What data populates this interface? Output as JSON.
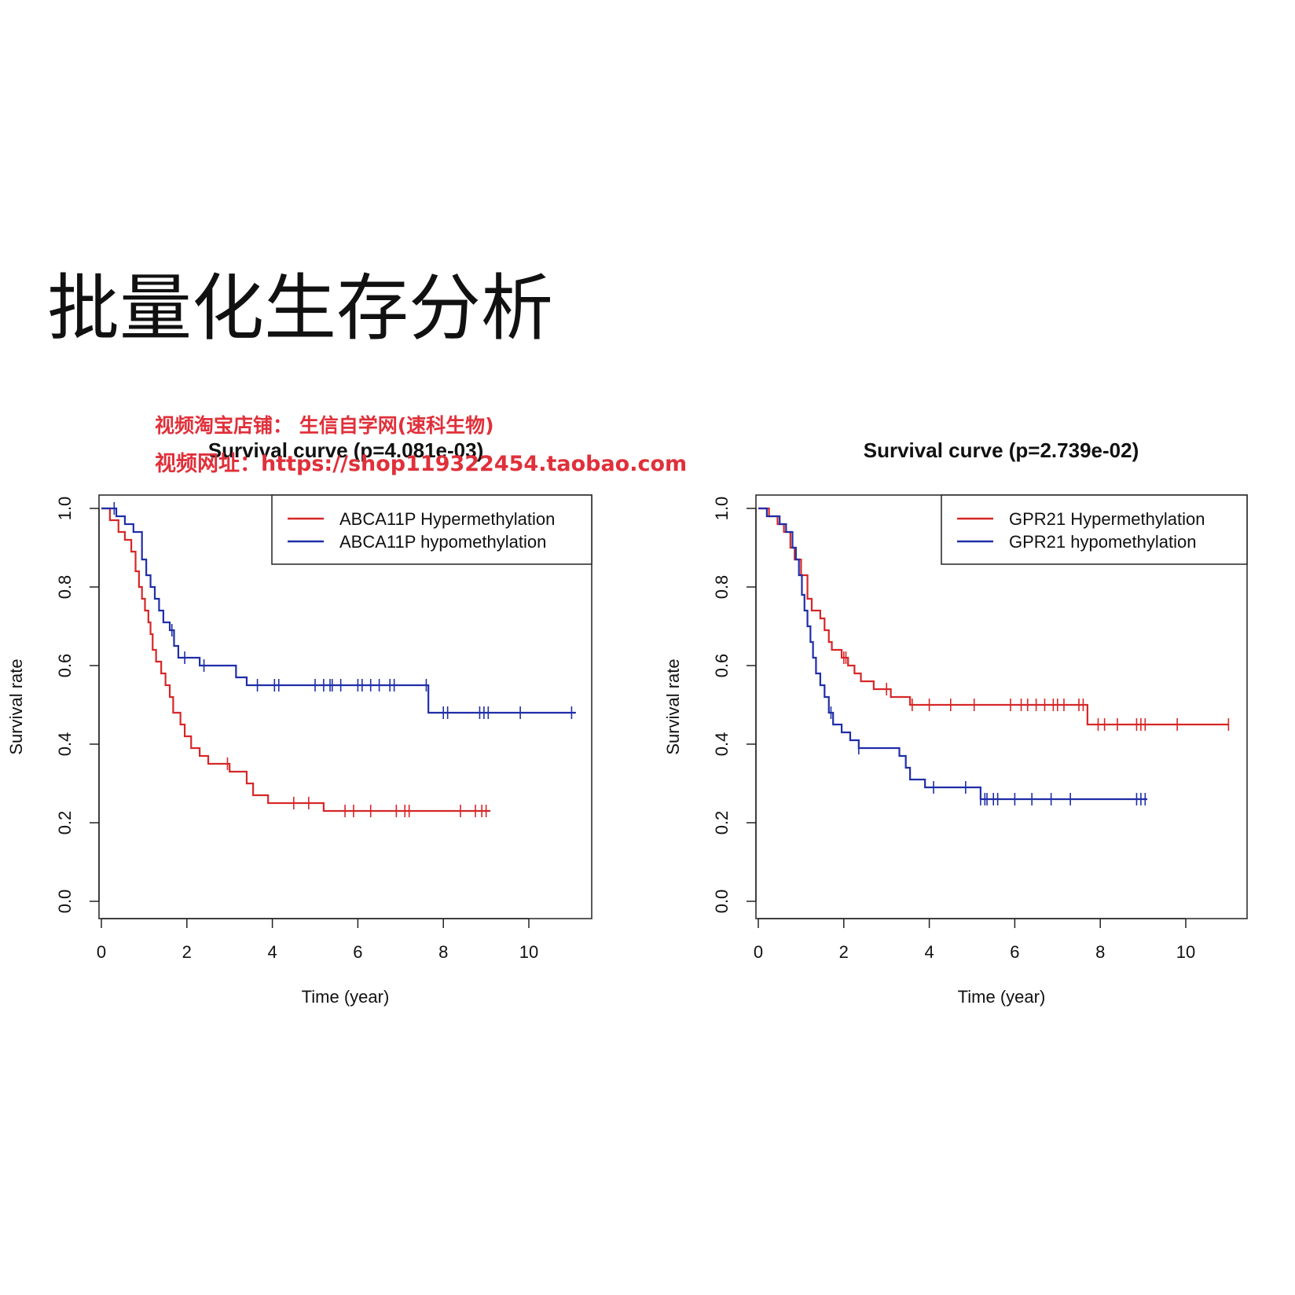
{
  "page": {
    "title": "批量化生存分析"
  },
  "watermark": {
    "line1": "视频淘宝店铺： 生信自学网(速科生物)",
    "line2": "视频网址：https://shop119322454.taobao.com",
    "color": "#e0303a"
  },
  "chart_data": [
    {
      "type": "line",
      "title": "Survival curve (p=4.081e-03)",
      "xlabel": "Time (year)",
      "ylabel": "Survival rate",
      "xlim": [
        0,
        11.5
      ],
      "ylim": [
        0,
        1.0
      ],
      "xticks": [
        "0",
        "2",
        "4",
        "6",
        "8",
        "10"
      ],
      "yticks": [
        "0.0",
        "0.2",
        "0.4",
        "0.6",
        "0.8",
        "1.0"
      ],
      "grid": false,
      "legend_position": "top-right",
      "series": [
        {
          "name": "ABCA11P Hypermethylation",
          "color": "#d62728",
          "steps": [
            [
              0,
              1.0
            ],
            [
              0.2,
              0.97
            ],
            [
              0.4,
              0.94
            ],
            [
              0.55,
              0.92
            ],
            [
              0.7,
              0.89
            ],
            [
              0.8,
              0.84
            ],
            [
              0.88,
              0.8
            ],
            [
              0.95,
              0.77
            ],
            [
              1.02,
              0.74
            ],
            [
              1.1,
              0.71
            ],
            [
              1.15,
              0.68
            ],
            [
              1.2,
              0.64
            ],
            [
              1.28,
              0.61
            ],
            [
              1.4,
              0.58
            ],
            [
              1.5,
              0.55
            ],
            [
              1.6,
              0.52
            ],
            [
              1.68,
              0.48
            ],
            [
              1.85,
              0.45
            ],
            [
              1.95,
              0.42
            ],
            [
              2.1,
              0.39
            ],
            [
              2.3,
              0.37
            ],
            [
              2.5,
              0.35
            ],
            [
              3.0,
              0.33
            ],
            [
              3.4,
              0.3
            ],
            [
              3.55,
              0.27
            ],
            [
              3.9,
              0.25
            ],
            [
              5.2,
              0.23
            ],
            [
              9.1,
              0.23
            ]
          ],
          "censored": [
            2.95,
            4.5,
            4.85,
            5.7,
            5.9,
            6.3,
            6.9,
            7.1,
            7.2,
            8.4,
            8.75,
            8.9,
            9.0
          ]
        },
        {
          "name": "ABCA11P hypomethylation",
          "color": "#1f2ea8",
          "steps": [
            [
              0,
              1.0
            ],
            [
              0.35,
              0.98
            ],
            [
              0.55,
              0.96
            ],
            [
              0.75,
              0.94
            ],
            [
              0.95,
              0.87
            ],
            [
              1.05,
              0.83
            ],
            [
              1.15,
              0.8
            ],
            [
              1.25,
              0.77
            ],
            [
              1.35,
              0.74
            ],
            [
              1.45,
              0.71
            ],
            [
              1.6,
              0.69
            ],
            [
              1.7,
              0.65
            ],
            [
              1.8,
              0.62
            ],
            [
              2.3,
              0.6
            ],
            [
              3.15,
              0.57
            ],
            [
              3.4,
              0.55
            ],
            [
              7.65,
              0.48
            ],
            [
              11.1,
              0.48
            ]
          ],
          "censored": [
            0.3,
            1.65,
            1.95,
            2.4,
            3.65,
            4.05,
            4.15,
            5.0,
            5.2,
            5.35,
            5.4,
            5.6,
            6.0,
            6.1,
            6.3,
            6.5,
            6.75,
            6.85,
            7.6,
            8.0,
            8.1,
            8.85,
            8.95,
            9.05,
            9.8,
            11.0
          ]
        }
      ]
    },
    {
      "type": "line",
      "title": "Survival curve (p=2.739e-02)",
      "xlabel": "Time (year)",
      "ylabel": "Survival rate",
      "xlim": [
        0,
        11.5
      ],
      "ylim": [
        0,
        1.0
      ],
      "xticks": [
        "0",
        "2",
        "4",
        "6",
        "8",
        "10"
      ],
      "yticks": [
        "0.0",
        "0.2",
        "0.4",
        "0.6",
        "0.8",
        "1.0"
      ],
      "grid": false,
      "legend_position": "top-right",
      "series": [
        {
          "name": "GPR21 Hypermethylation",
          "color": "#d62728",
          "steps": [
            [
              0,
              1.0
            ],
            [
              0.25,
              0.98
            ],
            [
              0.45,
              0.96
            ],
            [
              0.6,
              0.94
            ],
            [
              0.75,
              0.9
            ],
            [
              0.85,
              0.87
            ],
            [
              1.0,
              0.83
            ],
            [
              1.15,
              0.77
            ],
            [
              1.25,
              0.74
            ],
            [
              1.45,
              0.72
            ],
            [
              1.55,
              0.69
            ],
            [
              1.65,
              0.66
            ],
            [
              1.72,
              0.64
            ],
            [
              1.95,
              0.62
            ],
            [
              2.1,
              0.6
            ],
            [
              2.25,
              0.58
            ],
            [
              2.4,
              0.56
            ],
            [
              2.7,
              0.54
            ],
            [
              3.1,
              0.52
            ],
            [
              3.55,
              0.5
            ],
            [
              7.7,
              0.45
            ],
            [
              11.0,
              0.45
            ]
          ],
          "censored": [
            2.0,
            2.05,
            3.0,
            3.6,
            4.0,
            4.5,
            5.05,
            5.9,
            6.15,
            6.3,
            6.5,
            6.7,
            6.9,
            7.0,
            7.15,
            7.5,
            7.6,
            7.95,
            8.1,
            8.4,
            8.85,
            8.95,
            9.05,
            9.8,
            11.0
          ]
        },
        {
          "name": "GPR21 hypomethylation",
          "color": "#1f2ea8",
          "steps": [
            [
              0,
              1.0
            ],
            [
              0.2,
              0.98
            ],
            [
              0.5,
              0.96
            ],
            [
              0.65,
              0.94
            ],
            [
              0.8,
              0.9
            ],
            [
              0.88,
              0.87
            ],
            [
              0.95,
              0.83
            ],
            [
              1.02,
              0.78
            ],
            [
              1.08,
              0.74
            ],
            [
              1.15,
              0.7
            ],
            [
              1.22,
              0.66
            ],
            [
              1.28,
              0.62
            ],
            [
              1.35,
              0.58
            ],
            [
              1.45,
              0.55
            ],
            [
              1.55,
              0.52
            ],
            [
              1.65,
              0.48
            ],
            [
              1.75,
              0.45
            ],
            [
              1.95,
              0.43
            ],
            [
              2.15,
              0.41
            ],
            [
              2.35,
              0.39
            ],
            [
              3.3,
              0.37
            ],
            [
              3.45,
              0.34
            ],
            [
              3.55,
              0.31
            ],
            [
              3.9,
              0.29
            ],
            [
              5.2,
              0.26
            ],
            [
              9.1,
              0.26
            ]
          ],
          "censored": [
            1.7,
            2.35,
            4.1,
            4.85,
            5.2,
            5.3,
            5.35,
            5.5,
            5.6,
            6.0,
            6.4,
            6.85,
            7.3,
            8.85,
            8.95,
            9.05
          ]
        }
      ]
    }
  ]
}
